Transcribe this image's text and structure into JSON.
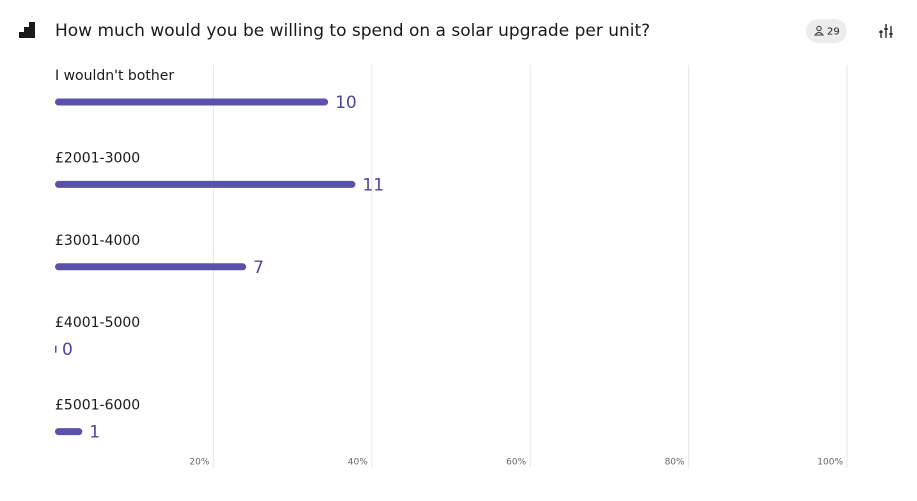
{
  "header": {
    "title": "How much would you be willing to spend on a solar upgrade per unit?",
    "respondents": 29
  },
  "chart_data": {
    "type": "bar",
    "categories": [
      "I wouldn't bother",
      "£2001-3000",
      "£3001-4000",
      "£4001-5000",
      "£5001-6000"
    ],
    "values": [
      10,
      11,
      7,
      0,
      1
    ],
    "color": "#5a52aa",
    "xlim": [
      0,
      100
    ],
    "xticks": [
      {
        "value": 20,
        "label": "20%"
      },
      {
        "value": 40,
        "label": "40%"
      },
      {
        "value": 60,
        "label": "60%"
      },
      {
        "value": 80,
        "label": "80%"
      },
      {
        "value": 100,
        "label": "100%"
      }
    ],
    "grid": true
  }
}
